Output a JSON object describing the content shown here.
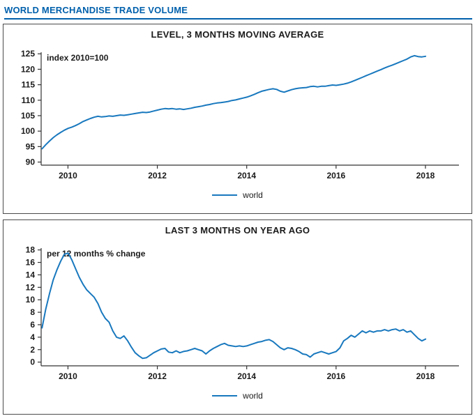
{
  "page": {
    "title": "WORLD MERCHANDISE TRADE VOLUME"
  },
  "colors": {
    "title": "#0060ac",
    "line": "#1878be",
    "axis": "#333333",
    "box_border": "#4a4a4a"
  },
  "legend": {
    "world_label": "world"
  },
  "chart_data": [
    {
      "type": "line",
      "title": "LEVEL, 3 MONTHS MOVING AVERAGE",
      "annotation": "index 2010=100",
      "legend_position": "bottom",
      "grid": false,
      "x_start": 2009.42,
      "x_step": 0.08333,
      "xlim": [
        2009.4,
        2018.75
      ],
      "ylim": [
        89,
        125.5
      ],
      "xticks": [
        2010,
        2012,
        2014,
        2016,
        2018
      ],
      "yticks": [
        90,
        95,
        100,
        105,
        110,
        115,
        120,
        125
      ],
      "series": [
        {
          "name": "world",
          "values": [
            94.3,
            95.6,
            96.8,
            97.9,
            98.8,
            99.6,
            100.3,
            100.9,
            101.3,
            101.8,
            102.4,
            103.1,
            103.6,
            104.1,
            104.5,
            104.8,
            104.6,
            104.7,
            104.9,
            104.8,
            105.0,
            105.2,
            105.1,
            105.3,
            105.5,
            105.7,
            105.9,
            106.1,
            106.0,
            106.2,
            106.5,
            106.8,
            107.1,
            107.3,
            107.2,
            107.3,
            107.1,
            107.2,
            107.0,
            107.2,
            107.4,
            107.7,
            107.9,
            108.1,
            108.4,
            108.6,
            108.9,
            109.1,
            109.2,
            109.4,
            109.6,
            109.9,
            110.1,
            110.4,
            110.7,
            111.0,
            111.4,
            111.9,
            112.4,
            112.9,
            113.2,
            113.5,
            113.7,
            113.5,
            112.9,
            112.6,
            113.0,
            113.4,
            113.7,
            113.9,
            114.0,
            114.1,
            114.4,
            114.5,
            114.3,
            114.5,
            114.5,
            114.7,
            114.9,
            114.8,
            115.0,
            115.2,
            115.5,
            115.9,
            116.4,
            116.9,
            117.4,
            117.9,
            118.4,
            118.9,
            119.4,
            119.9,
            120.4,
            120.9,
            121.3,
            121.8,
            122.3,
            122.8,
            123.3,
            124.0,
            124.4,
            124.1,
            124.0,
            124.2
          ]
        }
      ]
    },
    {
      "type": "line",
      "title": "LAST 3 MONTHS ON YEAR AGO",
      "annotation": "per 12 months % change",
      "legend_position": "bottom",
      "grid": false,
      "x_start": 2009.42,
      "x_step": 0.08333,
      "xlim": [
        2009.4,
        2018.75
      ],
      "ylim": [
        -0.6,
        18.3
      ],
      "xticks": [
        2010,
        2012,
        2014,
        2016,
        2018
      ],
      "yticks": [
        0,
        2,
        4,
        6,
        8,
        10,
        12,
        14,
        16,
        18
      ],
      "series": [
        {
          "name": "world",
          "values": [
            5.5,
            8.5,
            11.0,
            13.2,
            14.8,
            16.2,
            17.3,
            17.5,
            16.4,
            15.0,
            13.6,
            12.5,
            11.6,
            11.0,
            10.4,
            9.4,
            8.0,
            7.0,
            6.4,
            5.0,
            4.0,
            3.8,
            4.2,
            3.4,
            2.4,
            1.5,
            1.0,
            0.6,
            0.7,
            1.1,
            1.5,
            1.8,
            2.1,
            2.2,
            1.6,
            1.5,
            1.8,
            1.5,
            1.7,
            1.8,
            2.0,
            2.2,
            2.0,
            1.8,
            1.3,
            1.8,
            2.2,
            2.5,
            2.8,
            3.0,
            2.7,
            2.6,
            2.5,
            2.6,
            2.5,
            2.6,
            2.8,
            3.0,
            3.2,
            3.3,
            3.5,
            3.6,
            3.3,
            2.8,
            2.3,
            2.0,
            2.3,
            2.2,
            2.0,
            1.7,
            1.3,
            1.2,
            0.8,
            1.3,
            1.5,
            1.7,
            1.5,
            1.3,
            1.5,
            1.7,
            2.3,
            3.4,
            3.8,
            4.3,
            4.0,
            4.5,
            5.0,
            4.7,
            5.0,
            4.8,
            5.0,
            5.0,
            5.2,
            5.0,
            5.2,
            5.3,
            5.0,
            5.2,
            4.8,
            5.0,
            4.4,
            3.8,
            3.4,
            3.7
          ]
        }
      ]
    }
  ]
}
